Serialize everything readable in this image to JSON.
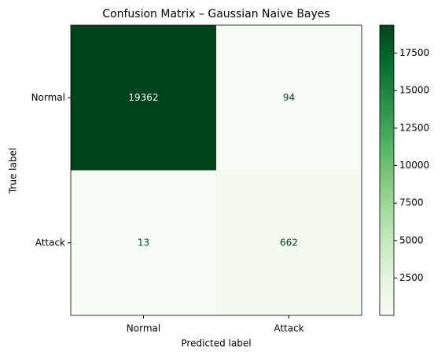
{
  "chart_data": {
    "type": "heatmap",
    "title": "Confusion Matrix – Gaussian Naive Bayes",
    "x_label": "Predicted label",
    "y_label": "True label",
    "x_categories": [
      "Normal",
      "Attack"
    ],
    "y_categories": [
      "Normal",
      "Attack"
    ],
    "values": [
      [
        19362,
        94
      ],
      [
        13,
        662
      ]
    ],
    "colormap": "Greens",
    "zlim": [
      13,
      19362
    ],
    "colorbar_ticks": [
      2500,
      5000,
      7500,
      10000,
      12500,
      15000,
      17500
    ]
  }
}
